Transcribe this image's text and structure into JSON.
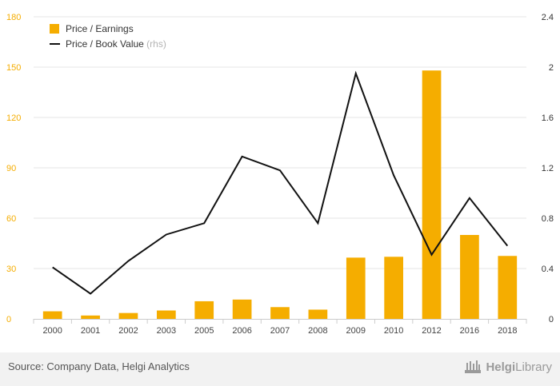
{
  "chart_data": {
    "type": "bar+line",
    "categories": [
      "2000",
      "2001",
      "2002",
      "2003",
      "2005",
      "2006",
      "2007",
      "2008",
      "2009",
      "2010",
      "2012",
      "2016",
      "2018"
    ],
    "series": [
      {
        "name": "Price / Earnings",
        "type": "bar",
        "axis": "left",
        "color": "#f5ad00",
        "values": [
          4.5,
          2.0,
          3.5,
          5.0,
          10.5,
          11.5,
          7.0,
          5.5,
          36.5,
          37.0,
          148.0,
          50.0,
          37.5
        ]
      },
      {
        "name": "Price / Book Value",
        "legend_suffix": "(rhs)",
        "type": "line",
        "axis": "right",
        "color": "#111111",
        "values": [
          0.41,
          0.2,
          0.46,
          0.67,
          0.76,
          1.29,
          1.18,
          0.76,
          1.95,
          1.14,
          0.51,
          0.96,
          0.58
        ]
      }
    ],
    "y_left": {
      "min": 0,
      "max": 180,
      "ticks": [
        "0",
        "30",
        "60",
        "90",
        "120",
        "150",
        "180"
      ],
      "color": "#f5ad00"
    },
    "y_right": {
      "min": 0,
      "max": 2.4,
      "ticks": [
        "0",
        "0.4",
        "0.8",
        "1.2",
        "1.6",
        "2",
        "2.4"
      ]
    },
    "legend_position": "top-left",
    "grid": "horizontal"
  },
  "footer": {
    "source": "Source: Company Data, Helgi Analytics",
    "logo_bold": "Helgi",
    "logo_rest": "Library"
  }
}
